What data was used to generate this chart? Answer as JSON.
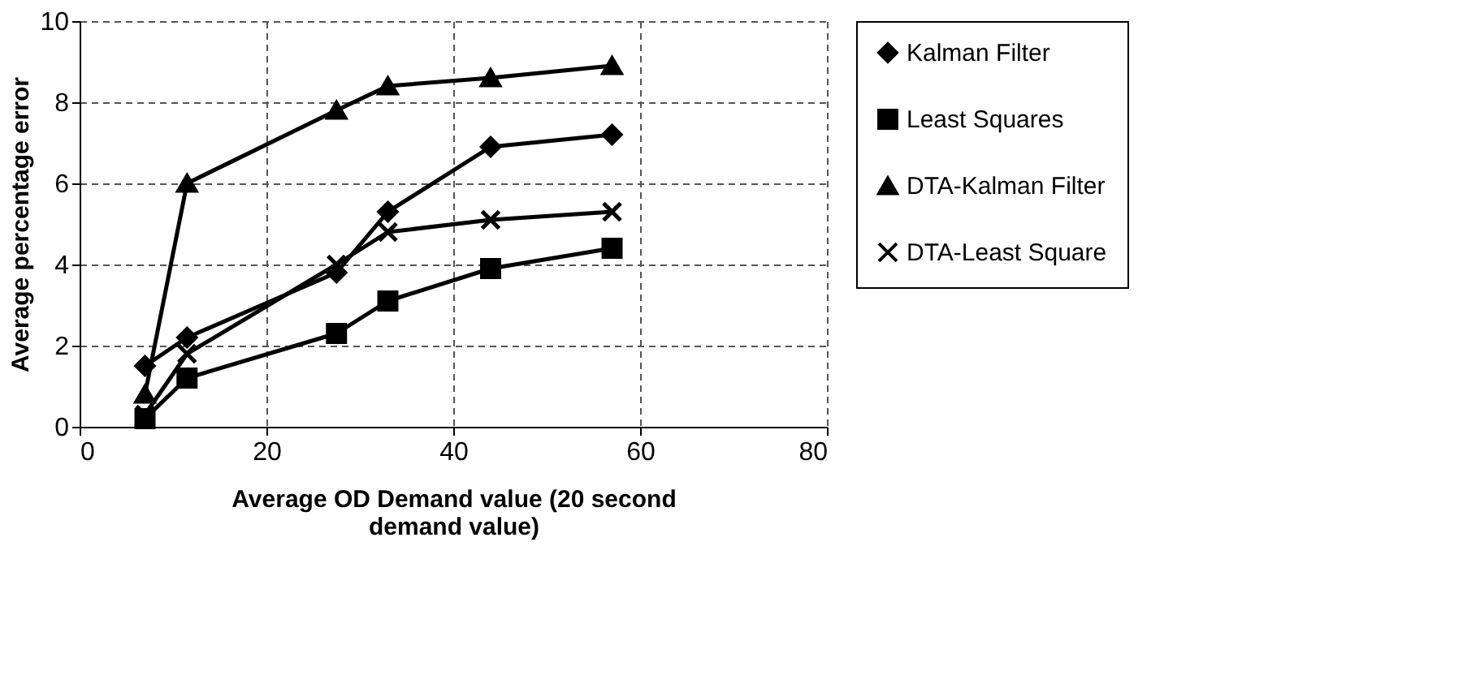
{
  "chart_data": {
    "type": "line",
    "xlabel": "Average OD Demand value (20 second demand value)",
    "ylabel": "Average percentage error",
    "x": [
      7,
      11.5,
      27.5,
      33,
      44,
      57
    ],
    "series": [
      {
        "name": "Kalman Filter",
        "color": "#000000",
        "marker": "diamond",
        "values": [
          1.5,
          2.2,
          3.8,
          5.3,
          6.9,
          7.2
        ]
      },
      {
        "name": "Least Squares",
        "color": "#000000",
        "marker": "square",
        "values": [
          0.2,
          1.2,
          2.3,
          3.1,
          3.9,
          4.4
        ]
      },
      {
        "name": "DTA-Kalman Filter",
        "color": "#000000",
        "marker": "triangle",
        "values": [
          0.8,
          6.0,
          7.8,
          8.4,
          8.6,
          8.9
        ]
      },
      {
        "name": "DTA-Least Square",
        "color": "#000000",
        "marker": "cross",
        "values": [
          0.3,
          1.8,
          4.0,
          4.8,
          5.1,
          5.3
        ]
      }
    ],
    "xlim": [
      0,
      80
    ],
    "xticks": [
      0,
      20,
      40,
      60,
      80
    ],
    "ylim": [
      0,
      10
    ],
    "yticks": [
      0,
      2,
      4,
      6,
      8,
      10
    ],
    "grid": true,
    "legend": "right",
    "line_style": "solid"
  }
}
